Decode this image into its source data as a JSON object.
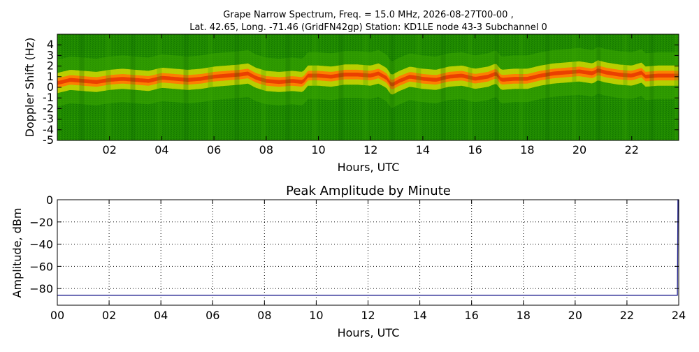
{
  "title": {
    "line1": "Grape Narrow Spectrum, Freq. = 15.0 MHz, 2026-08-27T00-00 ,",
    "line2": "Lat.  42.65, Long. -71.46 (GridFN42gp) Station: KD1LE node 43-3 Subchannel 0"
  },
  "colors": {
    "spec_bg": "#1f8a00",
    "spec_dark": "#0f6a00",
    "spec_light": "#3aa800",
    "spec_yellow": "#e8e000",
    "spec_orange": "#ff7a00",
    "spec_red": "#e83a00",
    "line": "#1a1a8c",
    "grid": "#000000"
  },
  "chart_data": [
    {
      "type": "heatmap",
      "name": "spectrogram",
      "title": "",
      "xlabel": "Hours, UTC",
      "ylabel": "Doppler Shift (Hz)",
      "xlim": [
        0,
        23.8
      ],
      "ylim": [
        -5,
        5
      ],
      "x_ticks": [
        "02",
        "04",
        "06",
        "08",
        "10",
        "12",
        "14",
        "16",
        "18",
        "20",
        "22"
      ],
      "x_tick_values": [
        2,
        4,
        6,
        8,
        10,
        12,
        14,
        16,
        18,
        20,
        22
      ],
      "y_ticks": [
        "4",
        "3",
        "2",
        "1",
        "0",
        "-1",
        "-2",
        "-3",
        "-4",
        "-5"
      ],
      "y_tick_values": [
        4,
        3,
        2,
        1,
        0,
        -1,
        -2,
        -3,
        -4,
        -5
      ],
      "ridge": {
        "x": [
          0,
          0.5,
          1,
          1.5,
          2,
          2.5,
          3,
          3.5,
          4,
          4.5,
          5,
          5.5,
          6,
          6.5,
          7,
          7.3,
          7.6,
          8,
          8.5,
          9,
          9.4,
          9.6,
          10,
          10.5,
          11,
          11.5,
          12,
          12.3,
          12.6,
          12.8,
          13.1,
          13.5,
          14,
          14.5,
          15,
          15.5,
          16,
          16.5,
          16.8,
          17,
          17.5,
          18,
          18.5,
          19,
          19.5,
          20,
          20.5,
          20.7,
          21,
          21.5,
          22,
          22.4,
          22.5,
          23,
          23.8
        ],
        "y": [
          0.4,
          0.7,
          0.6,
          0.5,
          0.7,
          0.8,
          0.7,
          0.6,
          0.9,
          0.8,
          0.7,
          0.8,
          1.0,
          1.1,
          1.2,
          1.3,
          0.9,
          0.6,
          0.5,
          0.6,
          0.5,
          1.1,
          1.1,
          1.0,
          1.2,
          1.2,
          1.1,
          1.3,
          0.9,
          0.2,
          0.6,
          1.0,
          0.8,
          0.7,
          1.0,
          1.1,
          0.8,
          1.0,
          1.3,
          0.7,
          0.8,
          0.8,
          1.1,
          1.3,
          1.4,
          1.5,
          1.3,
          1.6,
          1.4,
          1.2,
          1.1,
          1.4,
          1.0,
          1.1,
          1.1
        ]
      }
    },
    {
      "type": "line",
      "name": "amplitude",
      "title": "Peak Amplitude by Minute",
      "xlabel": "Hours, UTC",
      "ylabel": "Amplitude, dBm",
      "xlim": [
        0,
        24
      ],
      "ylim": [
        -95,
        0
      ],
      "x_ticks": [
        "00",
        "02",
        "04",
        "06",
        "08",
        "10",
        "12",
        "14",
        "16",
        "18",
        "20",
        "22",
        "24"
      ],
      "x_tick_values": [
        0,
        2,
        4,
        6,
        8,
        10,
        12,
        14,
        16,
        18,
        20,
        22,
        24
      ],
      "y_ticks": [
        "0",
        "−20",
        "−40",
        "−60",
        "−80"
      ],
      "y_tick_values": [
        0,
        -20,
        -40,
        -60,
        -80
      ],
      "grid": true,
      "series": [
        {
          "x": [
            0,
            2,
            4,
            6,
            8,
            10,
            12,
            14,
            16,
            18,
            20,
            22,
            23.95,
            23.97,
            24
          ],
          "y": [
            -86,
            -86,
            -86,
            -86,
            -86,
            -86,
            -86,
            -86,
            -86,
            -86,
            -86,
            -86,
            -86,
            0,
            0
          ]
        }
      ]
    }
  ]
}
